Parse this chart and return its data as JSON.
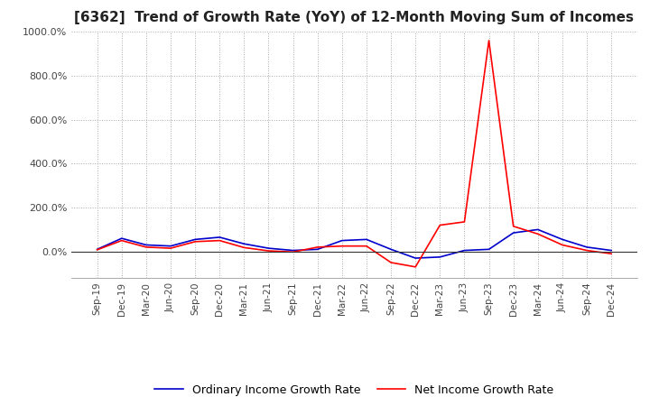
{
  "title": "[6362]  Trend of Growth Rate (YoY) of 12-Month Moving Sum of Incomes",
  "title_fontsize": 11,
  "legend_labels": [
    "Ordinary Income Growth Rate",
    "Net Income Growth Rate"
  ],
  "line_colors": [
    "#0000CC",
    "#FF0000"
  ],
  "ylim": [
    -120,
    1000
  ],
  "yticks": [
    0,
    200,
    400,
    600,
    800,
    1000
  ],
  "background_color": "#FFFFFF",
  "grid_color": "#AAAAAA",
  "x_labels": [
    "Sep-19",
    "Dec-19",
    "Mar-20",
    "Jun-20",
    "Sep-20",
    "Dec-20",
    "Mar-21",
    "Jun-21",
    "Sep-21",
    "Dec-21",
    "Mar-22",
    "Jun-22",
    "Sep-22",
    "Dec-22",
    "Mar-23",
    "Jun-23",
    "Sep-23",
    "Dec-23",
    "Mar-24",
    "Jun-24",
    "Sep-24",
    "Dec-24"
  ],
  "ordinary_income_growth": [
    10,
    60,
    30,
    25,
    55,
    65,
    35,
    15,
    5,
    10,
    50,
    55,
    10,
    -30,
    -25,
    5,
    10,
    85,
    100,
    55,
    20,
    5
  ],
  "net_income_growth": [
    8,
    50,
    20,
    15,
    45,
    50,
    18,
    3,
    -2,
    20,
    25,
    25,
    -50,
    -70,
    120,
    135,
    960,
    115,
    80,
    30,
    5,
    -10
  ]
}
